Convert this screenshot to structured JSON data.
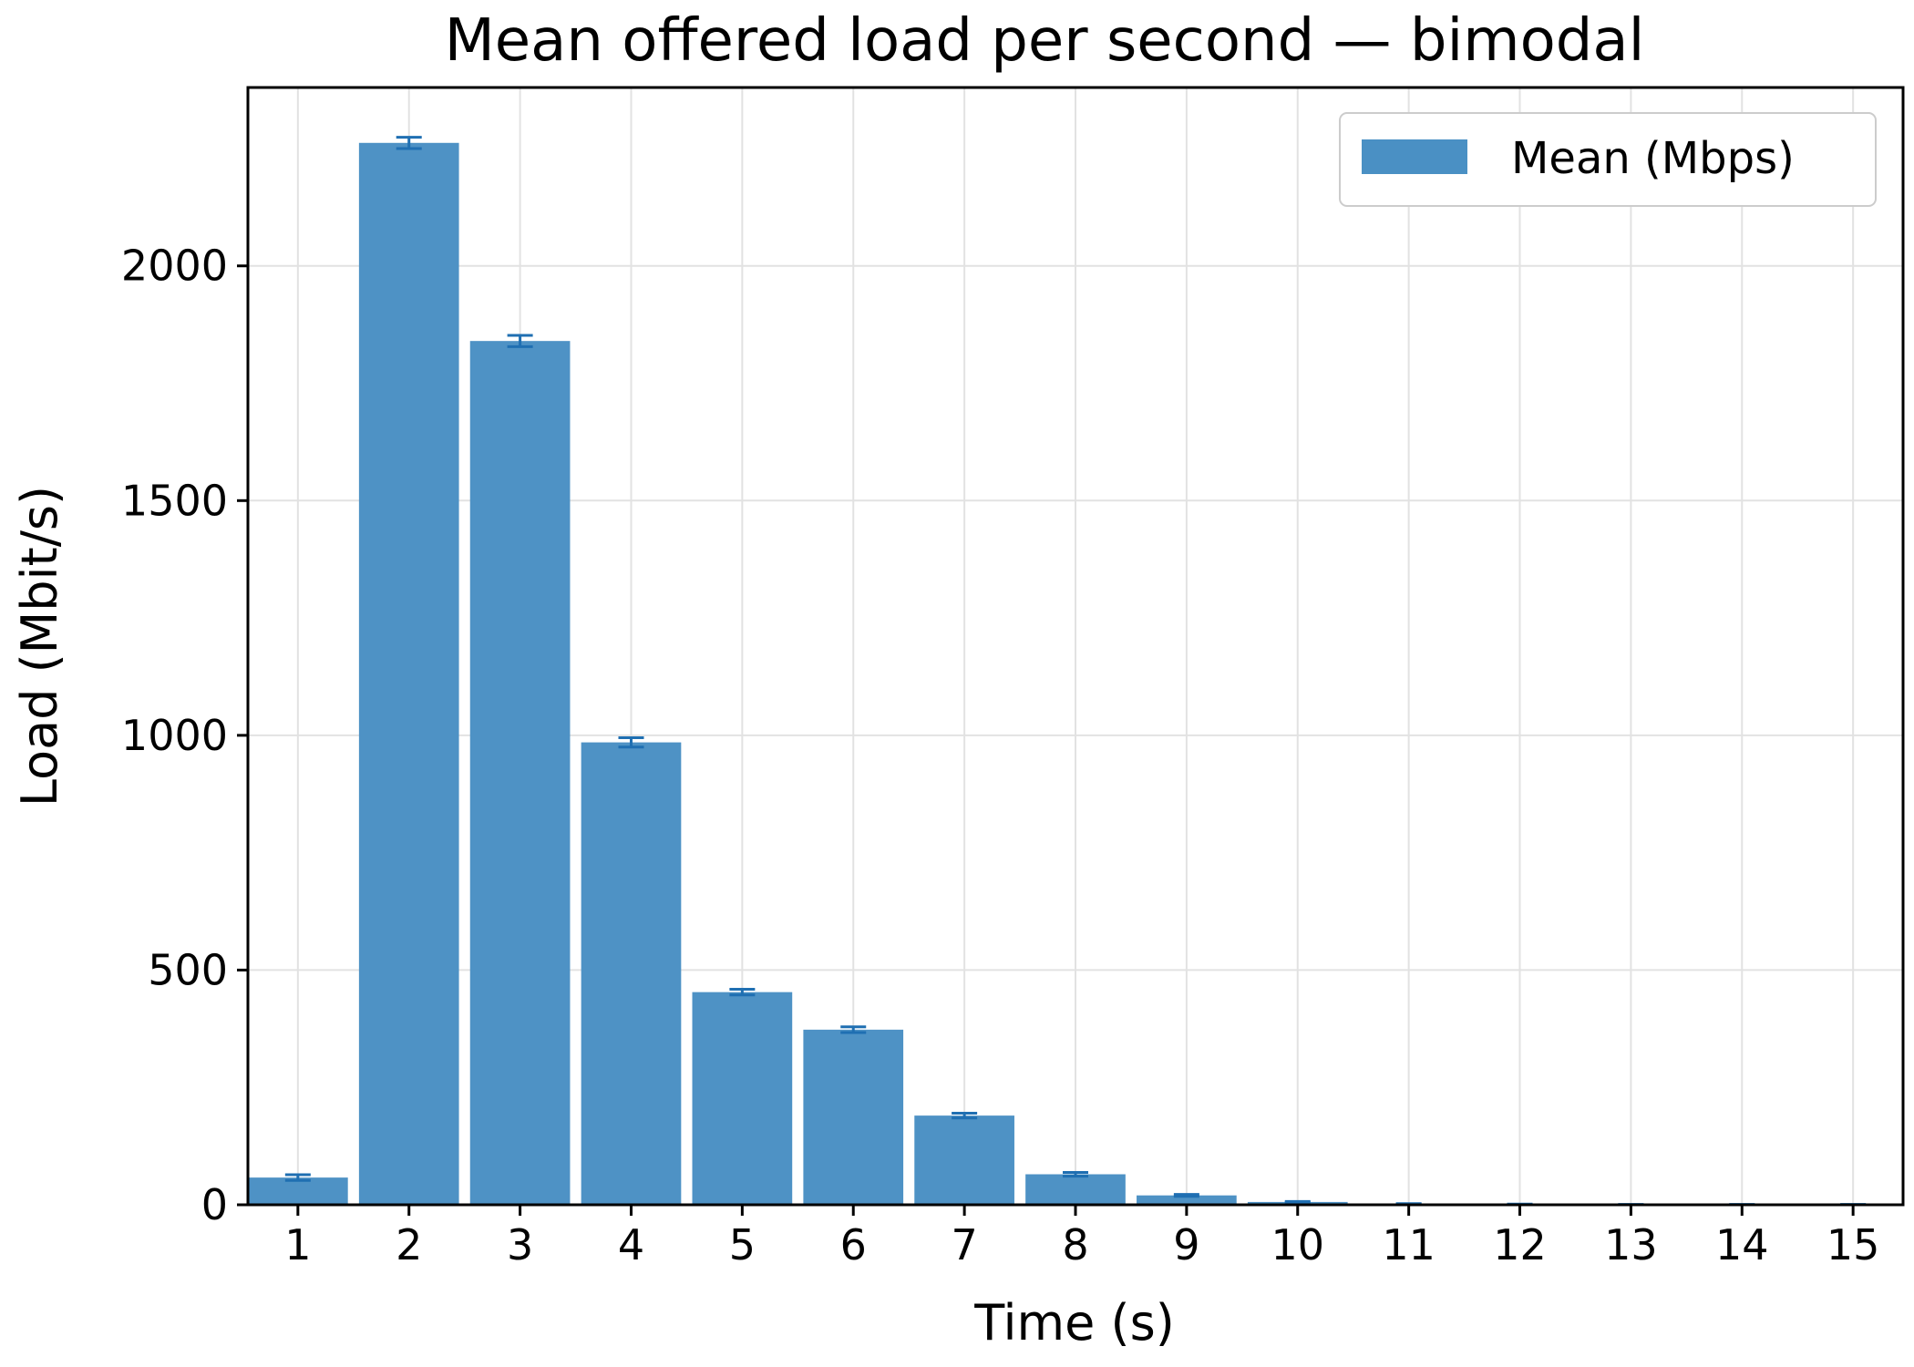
{
  "chart_data": {
    "type": "bar",
    "title": "Mean offered load per second — bimodal",
    "xlabel": "Time (s)",
    "ylabel": "Load (Mbit/s)",
    "categories": [
      "1",
      "2",
      "3",
      "4",
      "5",
      "6",
      "7",
      "8",
      "9",
      "10",
      "11",
      "12",
      "13",
      "14",
      "15"
    ],
    "series": [
      {
        "name": "Mean (Mbps)",
        "color": "#4a90c4",
        "values": [
          58,
          2262,
          1840,
          985,
          453,
          373,
          190,
          65,
          20,
          6,
          2,
          1,
          0.5,
          0.5,
          0.5
        ],
        "errors": [
          6,
          12,
          12,
          10,
          6,
          6,
          5,
          4,
          2,
          1,
          0.5,
          0.5,
          0.3,
          0.3,
          0.3
        ]
      }
    ],
    "errorbar_color": "#1f6fb2",
    "ylim": [
      0,
      2380
    ],
    "yticks": [
      0,
      500,
      1000,
      1500,
      2000
    ],
    "grid": true,
    "legend_position": "top-right"
  }
}
